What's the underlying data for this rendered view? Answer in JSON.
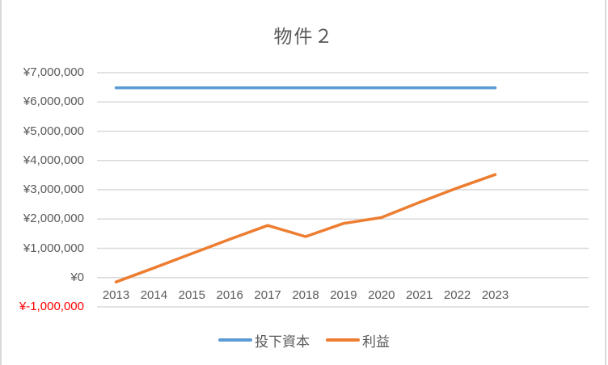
{
  "window": {
    "background": "#FFFFFF",
    "border_color": "#D9D9D9"
  },
  "chart_data": {
    "type": "line",
    "title": "物件２",
    "title_color": "#595959",
    "categories": [
      "2013",
      "2014",
      "2015",
      "2016",
      "2017",
      "2018",
      "2019",
      "2020",
      "2021",
      "2022",
      "2023"
    ],
    "series": [
      {
        "name": "投下資本",
        "color": "#5B9BD5",
        "values": [
          6480000,
          6480000,
          6480000,
          6480000,
          6480000,
          6480000,
          6480000,
          6480000,
          6480000,
          6480000,
          6480000
        ]
      },
      {
        "name": "利益",
        "color": "#ED7D31",
        "values": [
          -150000,
          330000,
          820000,
          1310000,
          1780000,
          1400000,
          1850000,
          2050000,
          2570000,
          3060000,
          3520000
        ]
      }
    ],
    "y_axis": {
      "min": -1000000,
      "max": 7000000,
      "step": 1000000,
      "tick_values": [
        7000000,
        6000000,
        5000000,
        4000000,
        3000000,
        2000000,
        1000000,
        0,
        -1000000
      ],
      "tick_labels": [
        "¥7,000,000",
        "¥6,000,000",
        "¥5,000,000",
        "¥4,000,000",
        "¥3,000,000",
        "¥2,000,000",
        "¥1,000,000",
        "¥0",
        "¥-1,000,000"
      ],
      "label_color": "#595959",
      "negative_label_color": "#FF0000"
    },
    "x_axis": {
      "label_color": "#595959"
    },
    "grid": true,
    "gridline_color": "#D9D9D9",
    "legend_position": "bottom"
  }
}
